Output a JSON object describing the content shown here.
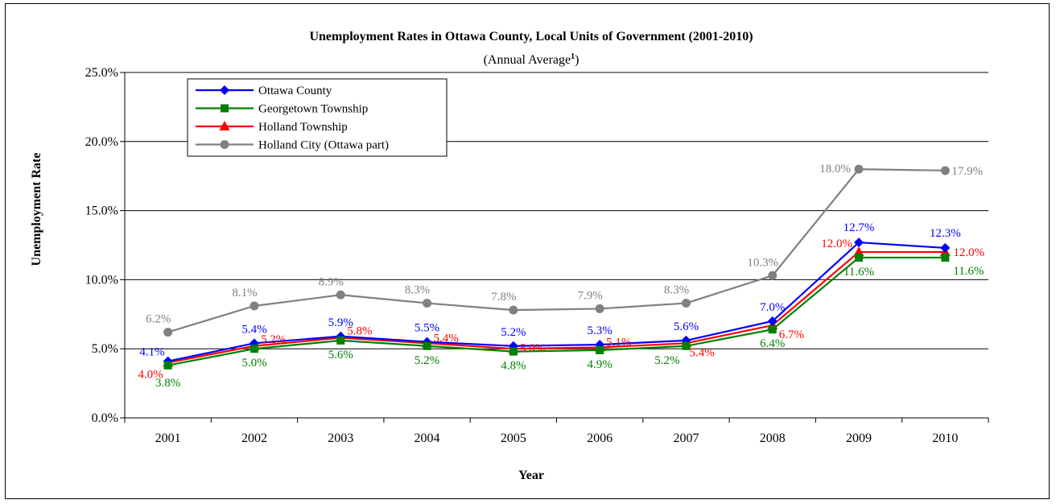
{
  "chart_data": {
    "type": "line",
    "title": "Unemployment Rates in Ottawa County, Local Units of Government (2001-2010)",
    "subtitle": "(Annual Average",
    "subtitle_sup": "1",
    "subtitle_end": ")",
    "xlabel": "Year",
    "ylabel": "Unemployment Rate",
    "categories": [
      "2001",
      "2002",
      "2003",
      "2004",
      "2005",
      "2006",
      "2007",
      "2008",
      "2009",
      "2010"
    ],
    "ylim": [
      0,
      25
    ],
    "yticks": [
      "0.0%",
      "5.0%",
      "10.0%",
      "15.0%",
      "20.0%",
      "25.0%"
    ],
    "grid": "horizontal",
    "legend_position": "top-left",
    "series": [
      {
        "name": "Ottawa County",
        "color": "#0000FF",
        "marker": "diamond",
        "values": [
          4.1,
          5.4,
          5.9,
          5.5,
          5.2,
          5.3,
          5.6,
          7.0,
          12.7,
          12.3
        ],
        "labels": [
          "4.1%",
          "5.4%",
          "5.9%",
          "5.5%",
          "5.2%",
          "5.3%",
          "5.6%",
          "7.0%",
          "12.7%",
          "12.3%"
        ]
      },
      {
        "name": "Georgetown Township",
        "color": "#008000",
        "marker": "square",
        "values": [
          3.8,
          5.0,
          5.6,
          5.2,
          4.8,
          4.9,
          5.2,
          6.4,
          11.6,
          11.6
        ],
        "labels": [
          "3.8%",
          "5.0%",
          "5.6%",
          "5.2%",
          "4.8%",
          "4.9%",
          "5.2%",
          "6.4%",
          "11.6%",
          "11.6%"
        ]
      },
      {
        "name": "Holland Township",
        "color": "#FF0000",
        "marker": "triangle",
        "values": [
          4.0,
          5.2,
          5.8,
          5.4,
          5.0,
          5.1,
          5.4,
          6.7,
          12.0,
          12.0
        ],
        "labels": [
          "4.0%",
          "5.2%",
          "5.8%",
          "5.4%",
          "5.0%",
          "5.1%",
          "5.4%",
          "6.7%",
          "12.0%",
          "12.0%"
        ]
      },
      {
        "name": "Holland City (Ottawa part)",
        "color": "#808080",
        "marker": "circle",
        "values": [
          6.2,
          8.1,
          8.9,
          8.3,
          7.8,
          7.9,
          8.3,
          10.3,
          18.0,
          17.9
        ],
        "labels": [
          "6.2%",
          "8.1%",
          "8.9%",
          "8.3%",
          "7.8%",
          "7.9%",
          "8.3%",
          "10.3%",
          "18.0%",
          "17.9%"
        ]
      }
    ]
  }
}
